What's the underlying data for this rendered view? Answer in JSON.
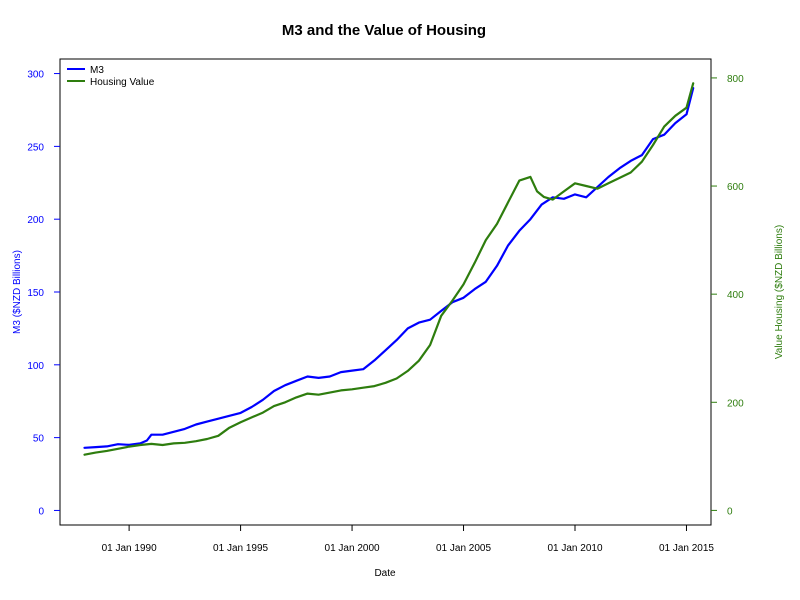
{
  "chart_data": {
    "type": "line",
    "title": "M3 and the Value of Housing",
    "xlabel": "Date",
    "ylabel_left": "M3 ($NZD Billions)",
    "ylabel_right": "Value Housing ($NZD Billions)",
    "x_ticks": [
      {
        "label": "01 Jan 1990",
        "year": 1990
      },
      {
        "label": "01 Jan 1995",
        "year": 1995
      },
      {
        "label": "01 Jan 2000",
        "year": 2000
      },
      {
        "label": "01 Jan 2005",
        "year": 2005
      },
      {
        "label": "01 Jan 2010",
        "year": 2010
      },
      {
        "label": "01 Jan 2015",
        "year": 2015
      }
    ],
    "xlim": [
      1986.9,
      2016.1
    ],
    "ylim_left": [
      -10,
      310
    ],
    "ylim_right": [
      -27,
      835
    ],
    "y_ticks_left": [
      0,
      50,
      100,
      150,
      200,
      250,
      300
    ],
    "y_ticks_right": [
      0,
      200,
      400,
      600,
      800
    ],
    "legend_position": "top-left",
    "colors": {
      "m3": "#0000ff",
      "housing": "#2e7d0e",
      "axis": "#000000"
    },
    "series": [
      {
        "name": "M3",
        "axis": "left",
        "color": "#0000ff",
        "x": [
          1988.0,
          1988.5,
          1989.0,
          1989.5,
          1990.0,
          1990.5,
          1990.8,
          1991.0,
          1991.5,
          1992.0,
          1992.5,
          1993.0,
          1993.5,
          1994.0,
          1994.5,
          1995.0,
          1995.5,
          1996.0,
          1996.5,
          1997.0,
          1997.5,
          1998.0,
          1998.5,
          1999.0,
          1999.5,
          2000.0,
          2000.5,
          2001.0,
          2001.5,
          2002.0,
          2002.5,
          2003.0,
          2003.5,
          2004.0,
          2004.5,
          2005.0,
          2005.5,
          2006.0,
          2006.5,
          2007.0,
          2007.5,
          2008.0,
          2008.5,
          2009.0,
          2009.5,
          2010.0,
          2010.5,
          2011.0,
          2011.5,
          2012.0,
          2012.5,
          2013.0,
          2013.5,
          2014.0,
          2014.5,
          2015.0,
          2015.3
        ],
        "values": [
          43,
          43.5,
          44,
          45.5,
          45,
          46,
          48,
          52,
          52,
          54,
          56,
          59,
          61,
          63,
          65,
          67,
          71,
          76,
          82,
          86,
          89,
          92,
          91,
          92,
          95,
          96,
          97,
          103,
          110,
          117,
          125,
          129,
          131,
          137,
          143,
          146,
          152,
          157,
          168,
          182,
          192,
          200,
          210,
          215,
          214,
          217,
          215,
          222,
          229,
          235,
          240,
          244,
          255,
          258,
          266,
          272,
          290
        ]
      },
      {
        "name": "Housing Value",
        "axis": "right",
        "color": "#2e7d0e",
        "x": [
          1988.0,
          1988.5,
          1989.0,
          1989.5,
          1990.0,
          1990.5,
          1991.0,
          1991.5,
          1992.0,
          1992.5,
          1993.0,
          1993.5,
          1994.0,
          1994.5,
          1995.0,
          1995.5,
          1996.0,
          1996.5,
          1997.0,
          1997.5,
          1998.0,
          1998.5,
          1999.0,
          1999.5,
          2000.0,
          2000.5,
          2001.0,
          2001.5,
          2002.0,
          2002.5,
          2003.0,
          2003.5,
          2004.0,
          2004.5,
          2005.0,
          2005.5,
          2006.0,
          2006.5,
          2007.0,
          2007.5,
          2008.0,
          2008.3,
          2008.6,
          2009.0,
          2009.5,
          2010.0,
          2010.5,
          2011.0,
          2011.5,
          2012.0,
          2012.5,
          2013.0,
          2013.5,
          2014.0,
          2014.5,
          2015.0,
          2015.3
        ],
        "values": [
          103,
          107,
          110,
          114,
          118,
          121,
          123,
          121,
          124,
          125,
          128,
          132,
          138,
          153,
          163,
          172,
          181,
          193,
          200,
          209,
          216,
          214,
          218,
          222,
          224,
          227,
          230,
          236,
          244,
          258,
          277,
          306,
          360,
          388,
          418,
          458,
          500,
          530,
          570,
          610,
          617,
          590,
          580,
          575,
          590,
          605,
          600,
          595,
          605,
          615,
          625,
          645,
          676,
          710,
          730,
          745,
          790
        ]
      }
    ]
  }
}
